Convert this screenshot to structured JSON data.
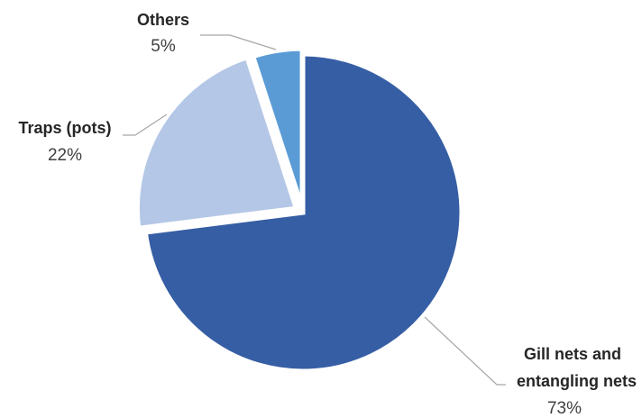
{
  "chart_data": {
    "type": "pie",
    "title": "",
    "start_angle_deg": 0,
    "direction": "clockwise",
    "slices": [
      {
        "label_lines": [
          "Gill nets and",
          "entangling nets"
        ],
        "value_label": "73%",
        "value": 73,
        "color": "#365ea4"
      },
      {
        "label_lines": [
          "Traps (pots)"
        ],
        "value_label": "22%",
        "value": 22,
        "color": "#b4c7e6"
      },
      {
        "label_lines": [
          "Others"
        ],
        "value_label": "5%",
        "value": 5,
        "color": "#5b9bd5"
      }
    ],
    "legend": "none",
    "data_labels": "outside with leader lines"
  }
}
